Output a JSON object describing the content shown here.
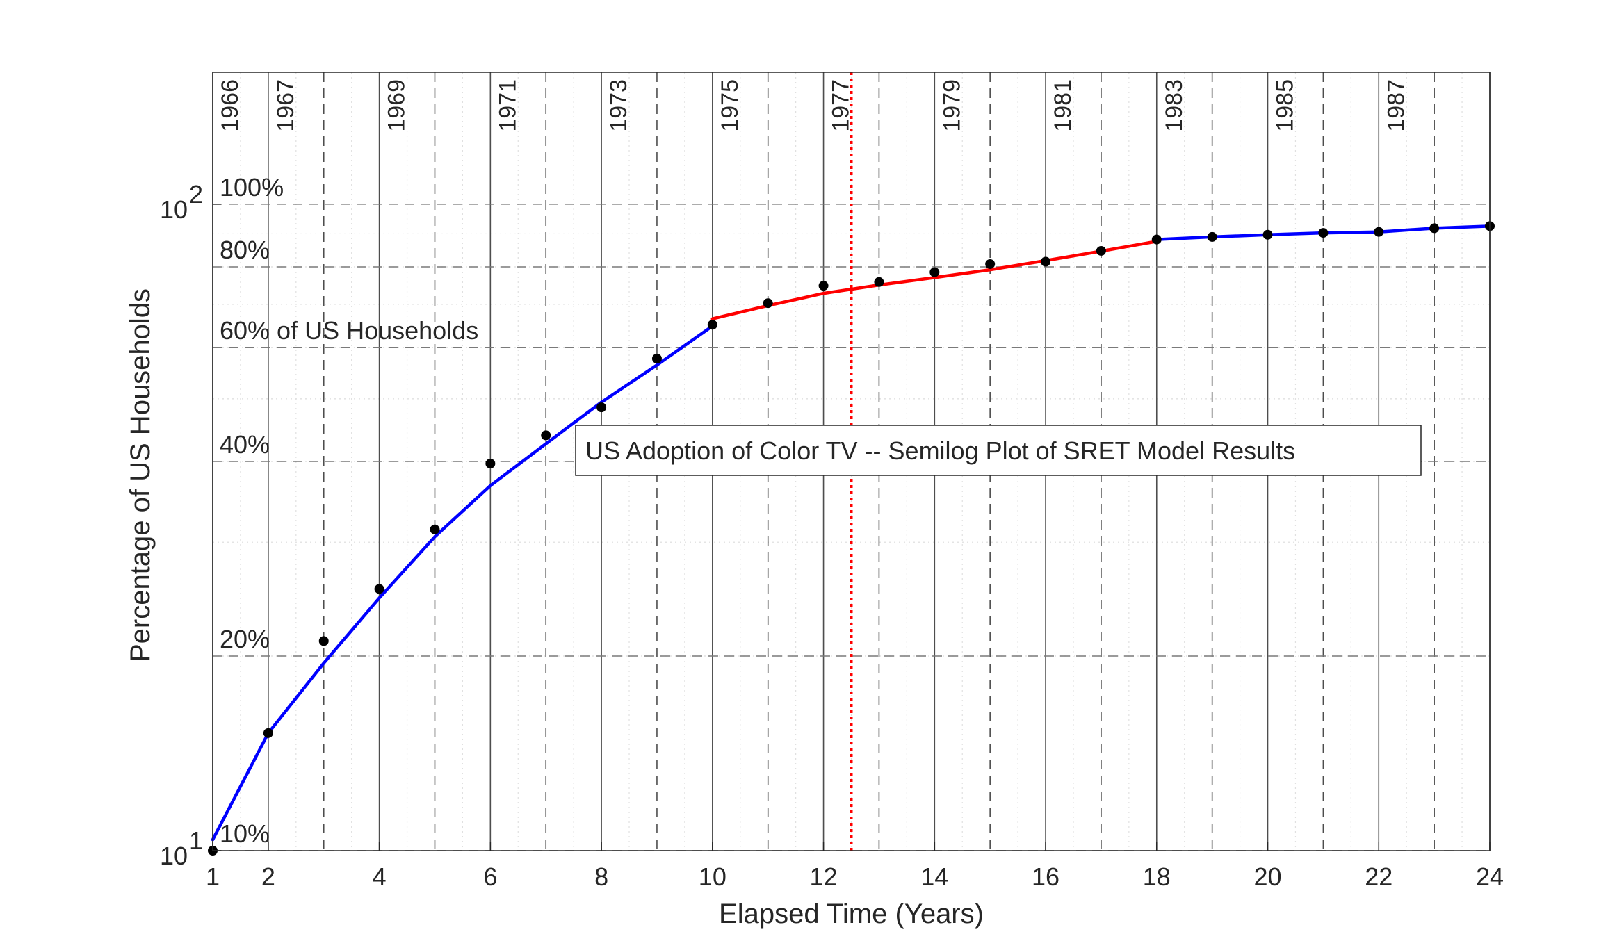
{
  "chart_data": {
    "type": "line",
    "title": "US Adoption of Color TV -- Semilog Plot of SRET Model Results",
    "xlabel": "Elapsed Time (Years)",
    "ylabel": "Percentage of US Households",
    "xlim": [
      1,
      24
    ],
    "ylim": [
      10,
      160
    ],
    "y_scale": "log",
    "grid": true,
    "x_ticks": [
      1,
      2,
      4,
      6,
      8,
      10,
      12,
      14,
      16,
      18,
      20,
      22,
      24
    ],
    "x_tick_labels": [
      "1",
      "2",
      "4",
      "6",
      "8",
      "10",
      "12",
      "14",
      "16",
      "18",
      "20",
      "22",
      "24"
    ],
    "y_ticks": [
      {
        "value": 10,
        "base": "10",
        "exp": "1"
      },
      {
        "value": 100,
        "base": "10",
        "exp": "2"
      }
    ],
    "year_lines": [
      {
        "x": 1,
        "label": "1966",
        "style": "solid"
      },
      {
        "x": 2,
        "label": "1967",
        "style": "solid"
      },
      {
        "x": 3,
        "label": "",
        "style": "dashed"
      },
      {
        "x": 4,
        "label": "1969",
        "style": "solid"
      },
      {
        "x": 5,
        "label": "",
        "style": "dashed"
      },
      {
        "x": 6,
        "label": "1971",
        "style": "solid"
      },
      {
        "x": 7,
        "label": "",
        "style": "dashed"
      },
      {
        "x": 8,
        "label": "1973",
        "style": "solid"
      },
      {
        "x": 9,
        "label": "",
        "style": "dashed"
      },
      {
        "x": 10,
        "label": "1975",
        "style": "solid"
      },
      {
        "x": 11,
        "label": "",
        "style": "dashed"
      },
      {
        "x": 12,
        "label": "1977",
        "style": "solid"
      },
      {
        "x": 13,
        "label": "",
        "style": "dashed"
      },
      {
        "x": 14,
        "label": "1979",
        "style": "solid"
      },
      {
        "x": 15,
        "label": "",
        "style": "dashed"
      },
      {
        "x": 16,
        "label": "1981",
        "style": "solid"
      },
      {
        "x": 17,
        "label": "",
        "style": "dashed"
      },
      {
        "x": 18,
        "label": "1983",
        "style": "solid"
      },
      {
        "x": 19,
        "label": "",
        "style": "dashed"
      },
      {
        "x": 20,
        "label": "1985",
        "style": "solid"
      },
      {
        "x": 21,
        "label": "",
        "style": "dashed"
      },
      {
        "x": 22,
        "label": "1987",
        "style": "solid"
      },
      {
        "x": 23,
        "label": "",
        "style": "dashed"
      },
      {
        "x": 24,
        "label": "",
        "style": "solid"
      }
    ],
    "percent_lines": [
      {
        "y": 10,
        "label": "10%"
      },
      {
        "y": 20,
        "label": "20%"
      },
      {
        "y": 40,
        "label": "40%"
      },
      {
        "y": 60,
        "label": "60% of US Households"
      },
      {
        "y": 80,
        "label": "80%"
      },
      {
        "y": 100,
        "label": "100%"
      }
    ],
    "marker_line": {
      "x": 12.5,
      "color": "#ff0000"
    },
    "observed": {
      "x": [
        1,
        2,
        3,
        4,
        5,
        6,
        7,
        8,
        9,
        10,
        11,
        12,
        13,
        14,
        15,
        16,
        17,
        18,
        19,
        20,
        21,
        22,
        23,
        24
      ],
      "y": [
        10.0,
        15.2,
        21.1,
        25.4,
        31.4,
        39.7,
        43.9,
        48.5,
        57.7,
        65.1,
        70.3,
        74.8,
        75.8,
        78.5,
        80.8,
        81.5,
        84.7,
        88.2,
        89.0,
        89.7,
        90.3,
        90.6,
        91.8,
        92.5
      ],
      "color": "#000000"
    },
    "model_segments": [
      {
        "color": "#0000ff",
        "x": [
          1,
          2,
          3,
          4,
          5,
          6,
          7,
          8,
          9,
          10
        ],
        "y": [
          10.4,
          15.2,
          19.5,
          24.6,
          30.6,
          36.7,
          42.6,
          49.4,
          56.4,
          64.8
        ]
      },
      {
        "color": "#ff0000",
        "x": [
          10,
          11,
          12,
          13,
          14,
          15,
          16,
          17,
          18
        ],
        "y": [
          66.5,
          69.7,
          72.8,
          75.0,
          77.0,
          79.2,
          81.8,
          84.6,
          87.6
        ]
      },
      {
        "color": "#0000ff",
        "x": [
          18,
          19,
          20,
          21,
          22,
          23,
          24
        ],
        "y": [
          88.2,
          89.0,
          89.7,
          90.3,
          90.6,
          91.8,
          92.5
        ]
      }
    ]
  }
}
